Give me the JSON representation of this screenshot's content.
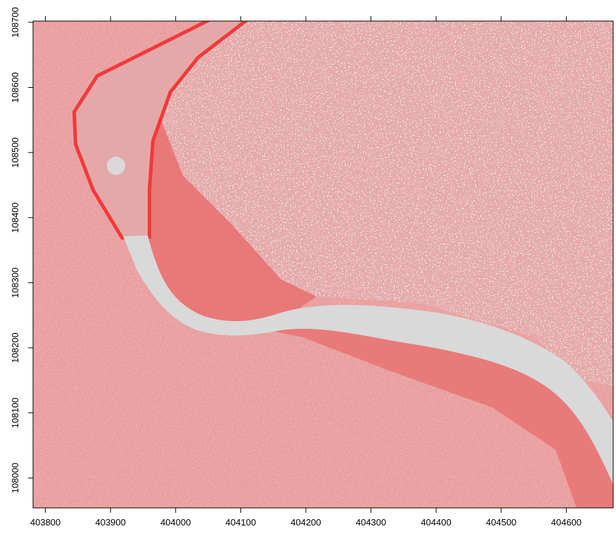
{
  "chart_data": {
    "type": "raster",
    "xlim": [
      403781,
      404672
    ],
    "ylim": [
      107954,
      108702
    ],
    "xticks": [
      403800,
      403900,
      404000,
      404100,
      404200,
      404300,
      404400,
      404500,
      404600
    ],
    "yticks": [
      108000,
      108100,
      108200,
      108300,
      108400,
      108500,
      108600,
      108700
    ]
  }
}
